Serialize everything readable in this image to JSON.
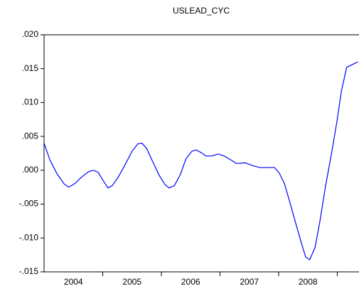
{
  "chart_data": {
    "type": "line",
    "title": "USLEAD_CYC",
    "series": [
      {
        "name": "USLEAD_CYC",
        "color": "#0000ff",
        "x": [
          2004.0,
          2004.1,
          2004.22,
          2004.34,
          2004.42,
          2004.52,
          2004.64,
          2004.76,
          2004.84,
          2004.92,
          2005.02,
          2005.09,
          2005.16,
          2005.26,
          2005.38,
          2005.5,
          2005.6,
          2005.67,
          2005.75,
          2005.84,
          2005.96,
          2006.06,
          2006.13,
          2006.22,
          2006.32,
          2006.42,
          2006.52,
          2006.59,
          2006.68,
          2006.76,
          2006.86,
          2006.97,
          2007.07,
          2007.19,
          2007.28,
          2007.43,
          2007.55,
          2007.68,
          2007.79,
          2007.93,
          2008.01,
          2008.1,
          2008.19,
          2008.29,
          2008.39,
          2008.46,
          2008.53,
          2008.62,
          2008.7,
          2008.8,
          2008.9,
          2008.99,
          2009.07,
          2009.16,
          2009.35
        ],
        "values": [
          0.004,
          0.0015,
          -0.0005,
          -0.002,
          -0.0025,
          -0.002,
          -0.001,
          -0.0002,
          0,
          -0.0003,
          -0.0017,
          -0.0026,
          -0.0023,
          -0.0011,
          0.0008,
          0.0028,
          0.0039,
          0.004,
          0.0032,
          0.0015,
          -0.0007,
          -0.0021,
          -0.0026,
          -0.0023,
          -0.0007,
          0.0017,
          0.0028,
          0.003,
          0.0026,
          0.0021,
          0.0021,
          0.0024,
          0.0021,
          0.0015,
          0.001,
          0.0011,
          0.0007,
          0.0004,
          0.0004,
          0.0004,
          -0.0004,
          -0.002,
          -0.0047,
          -0.0078,
          -0.0108,
          -0.0128,
          -0.0132,
          -0.0114,
          -0.0077,
          -0.0023,
          0.0024,
          0.007,
          0.0117,
          0.0152,
          0.016
        ]
      }
    ],
    "xlim": [
      2004,
      2009.37
    ],
    "xticks": [
      {
        "value": 2004.5,
        "label": "2004"
      },
      {
        "value": 2005.5,
        "label": "2005"
      },
      {
        "value": 2006.5,
        "label": "2006"
      },
      {
        "value": 2007.5,
        "label": "2007"
      },
      {
        "value": 2008.5,
        "label": "2008"
      }
    ],
    "xminorticks": [
      2005,
      2006,
      2007,
      2008,
      2009
    ],
    "ylim": [
      -0.015,
      0.02
    ],
    "yticks": [
      {
        "value": -0.015,
        "label": "-.015"
      },
      {
        "value": -0.01,
        "label": "-.010"
      },
      {
        "value": -0.005,
        "label": "-.005"
      },
      {
        "value": 0,
        "label": ".000"
      },
      {
        "value": 0.005,
        "label": ".005"
      },
      {
        "value": 0.01,
        "label": ".010"
      },
      {
        "value": 0.015,
        "label": ".015"
      },
      {
        "value": 0.02,
        "label": ".020"
      }
    ],
    "grid": false
  }
}
